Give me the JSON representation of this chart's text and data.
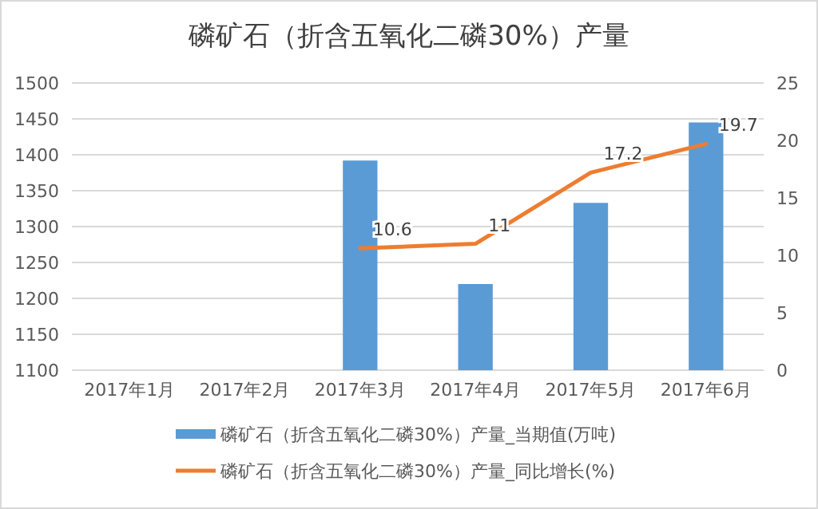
{
  "chart_data": {
    "type": "bar",
    "title": "磷矿石（折含五氧化二磷30%）产量",
    "categories": [
      "2017年1月",
      "2017年2月",
      "2017年3月",
      "2017年4月",
      "2017年5月",
      "2017年6月"
    ],
    "series": [
      {
        "name": "磷矿石（折含五氧化二磷30%）产量_当期值(万吨)",
        "color": "#5b9bd5",
        "values": [
          null,
          null,
          1392,
          1220,
          1333,
          1445
        ]
      },
      {
        "name": "磷矿石（折含五氧化二磷30%）产量_同比增长(%)",
        "type": "line",
        "axis": "y2",
        "color": "#ed7d31",
        "values": [
          null,
          null,
          10.6,
          11,
          17.2,
          19.7
        ],
        "value_labels": [
          null,
          null,
          "10.6",
          "11",
          "17.2",
          "19.7"
        ]
      }
    ],
    "ylim": [
      1100,
      1500
    ],
    "yticks": [
      1100,
      1150,
      1200,
      1250,
      1300,
      1350,
      1400,
      1450,
      1500
    ],
    "y2lim": [
      0,
      25
    ],
    "y2ticks": [
      0,
      5,
      10,
      15,
      20,
      25
    ],
    "grid": "y",
    "legend": "bottom"
  }
}
